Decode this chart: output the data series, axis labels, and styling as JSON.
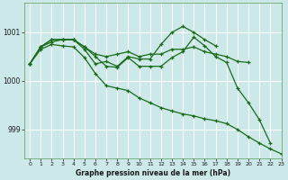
{
  "title": "Graphe pression niveau de la mer (hPa)",
  "bg_color": "#cce8e8",
  "grid_color": "#b8d8d8",
  "line_color": "#1a6b1a",
  "xlim": [
    -0.5,
    23
  ],
  "ylim": [
    998.4,
    1001.6
  ],
  "yticks": [
    999,
    1000,
    1001
  ],
  "xticks": [
    0,
    1,
    2,
    3,
    4,
    5,
    6,
    7,
    8,
    9,
    10,
    11,
    12,
    13,
    14,
    15,
    16,
    17,
    18,
    19,
    20,
    21,
    22,
    23
  ],
  "series": [
    [
      1000.35,
      1000.7,
      1000.8,
      1000.85,
      1000.85,
      1000.7,
      1000.55,
      1000.5,
      1000.55,
      1000.6,
      1000.5,
      1000.55,
      1000.55,
      1000.65,
      1000.65,
      1000.7,
      1000.6,
      1000.55,
      1000.5,
      1000.4,
      1000.38,
      null,
      null,
      null
    ],
    [
      1000.35,
      1000.7,
      1000.85,
      1000.85,
      1000.85,
      1000.65,
      1000.35,
      1000.4,
      1000.3,
      1000.5,
      1000.45,
      1000.45,
      1000.75,
      1001.0,
      1001.12,
      1001.0,
      1000.85,
      1000.72,
      null,
      null,
      null,
      null,
      null,
      null
    ],
    [
      1000.35,
      1000.7,
      1000.85,
      1000.85,
      1000.85,
      1000.7,
      1000.5,
      1000.3,
      1000.28,
      1000.48,
      1000.3,
      1000.3,
      1000.3,
      1000.48,
      1000.6,
      1000.9,
      1000.72,
      1000.5,
      1000.38,
      999.85,
      999.55,
      999.2,
      998.72,
      null
    ],
    [
      1000.35,
      1000.65,
      1000.75,
      1000.72,
      1000.7,
      1000.48,
      1000.15,
      999.9,
      999.85,
      999.8,
      999.65,
      999.55,
      999.45,
      999.38,
      999.32,
      999.28,
      999.22,
      999.18,
      999.12,
      999.0,
      998.85,
      998.72,
      998.6,
      998.5
    ]
  ]
}
